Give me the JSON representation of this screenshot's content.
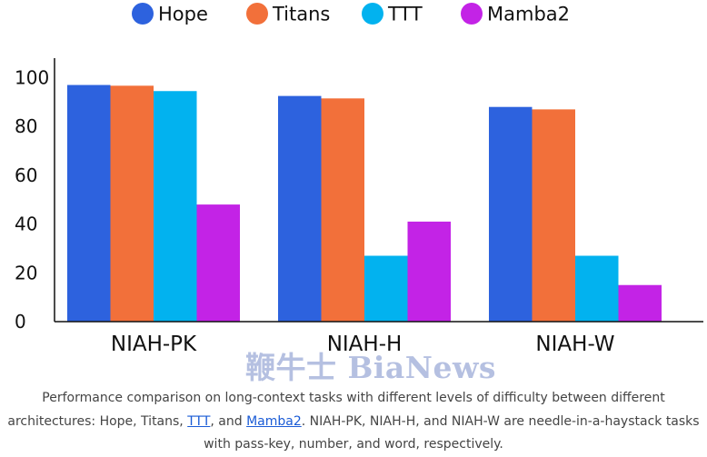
{
  "colors": {
    "Hope": "#2d62de",
    "Titans": "#f2703a",
    "TTT": "#02b2ef",
    "Mamba2": "#c323e6",
    "axis": "#111111"
  },
  "chart_data": {
    "type": "bar",
    "categories": [
      "NIAH-PK",
      "NIAH-H",
      "NIAH-W"
    ],
    "series": [
      {
        "name": "Hope",
        "values": [
          97,
          92.5,
          88
        ]
      },
      {
        "name": "Titans",
        "values": [
          96.7,
          91.5,
          87
        ]
      },
      {
        "name": "TTT",
        "values": [
          94.5,
          27,
          27
        ]
      },
      {
        "name": "Mamba2",
        "values": [
          48,
          41,
          15
        ]
      }
    ],
    "yticks": [
      0,
      20,
      40,
      60,
      80,
      100
    ],
    "ylim": [
      0,
      108
    ],
    "title": "",
    "xlabel": "",
    "ylabel": "",
    "legend_position": "top",
    "grid": false
  },
  "watermark": "鞭牛士 BiaNews",
  "caption": {
    "line1": "Performance comparison on long-context tasks with different levels of difficulty between different",
    "line2_pre": "architectures: Hope, Titans, ",
    "line2_link1": "TTT",
    "line2_mid": ", and ",
    "line2_link2": "Mamba2",
    "line2_post": ". NIAH-PK, NIAH-H, and NIAH-W are needle-in-a-haystack tasks",
    "line3": "with pass-key, number, and word, respectively."
  }
}
